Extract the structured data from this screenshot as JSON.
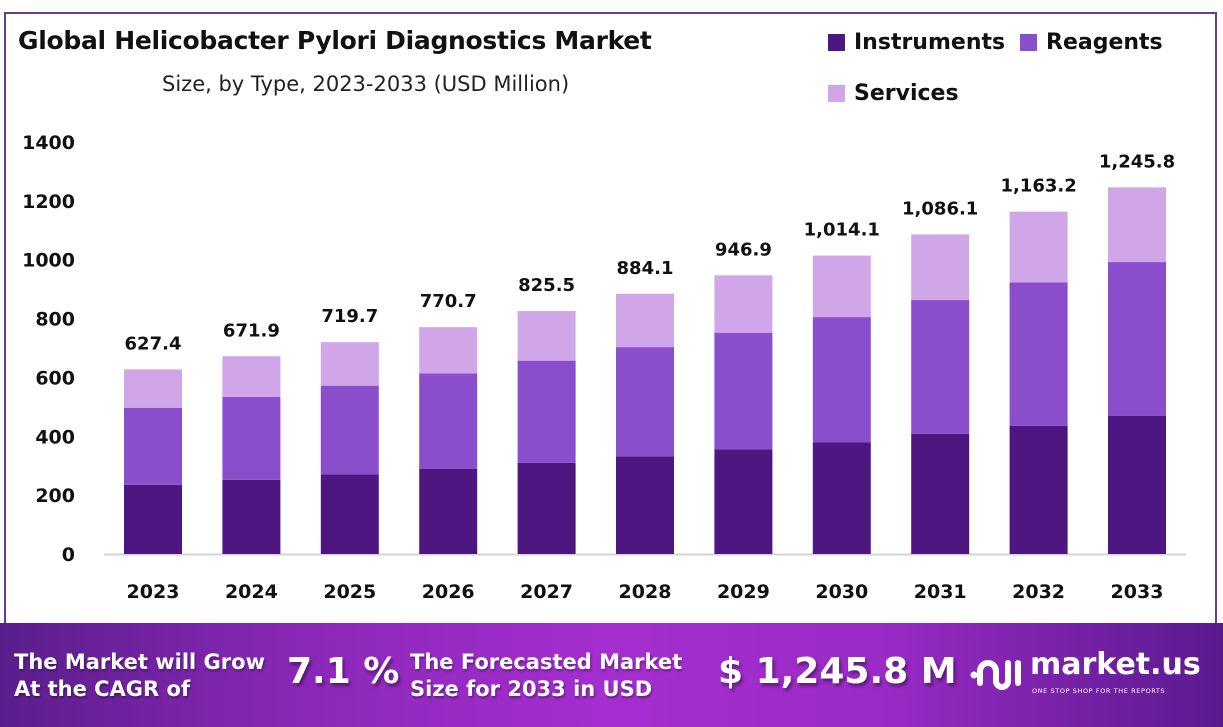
{
  "chart_data": {
    "type": "bar",
    "stacked": true,
    "title": "Global Helicobacter Pylori Diagnostics Market",
    "subtitle": "Size, by Type, 2023-2033 (USD Million)",
    "xlabel": "",
    "ylabel": "",
    "ylim": [
      0,
      1400
    ],
    "yticks": [
      "0",
      "200",
      "400",
      "600",
      "800",
      "1000",
      "1200",
      "1400"
    ],
    "ytick_values": [
      0,
      200,
      400,
      600,
      800,
      1000,
      1200,
      1400
    ],
    "categories": [
      "2023",
      "2024",
      "2025",
      "2026",
      "2027",
      "2028",
      "2029",
      "2030",
      "2031",
      "2032",
      "2033"
    ],
    "totals": [
      627.4,
      671.9,
      719.7,
      770.7,
      825.5,
      884.1,
      946.9,
      1014.1,
      1086.1,
      1163.2,
      1245.8
    ],
    "total_labels": [
      "627.4",
      "671.9",
      "719.7",
      "770.7",
      "825.5",
      "884.1",
      "946.9",
      "1,014.1",
      "1,086.1",
      "1,163.2",
      "1,245.8"
    ],
    "series": [
      {
        "name": "Instruments",
        "color": "#4e1680",
        "values": [
          235,
          252,
          270,
          290,
          310,
          332,
          355,
          380,
          408,
          436,
          469
        ]
      },
      {
        "name": "Reagents",
        "color": "#8a4ecc",
        "values": [
          262,
          282,
          302,
          324,
          347,
          371,
          397,
          425,
          455,
          487,
          523
        ]
      },
      {
        "name": "Services",
        "color": "#d0a6e8",
        "values": [
          130.4,
          137.9,
          147.7,
          156.7,
          168.5,
          181.1,
          194.9,
          209.1,
          223.1,
          240.2,
          253.8
        ]
      }
    ],
    "legend_position": "top-right",
    "grid": false
  },
  "banner": {
    "cagr_text_line1": "The Market will Grow",
    "cagr_text_line2": "At the CAGR of",
    "cagr_value": "7.1 %",
    "forecast_text_line1": "The Forecasted Market",
    "forecast_text_line2": "Size for 2033 in USD",
    "forecast_value": "$ 1,245.8 M",
    "logo_name": "market.us",
    "logo_tagline": "ONE STOP SHOP FOR THE REPORTS"
  }
}
